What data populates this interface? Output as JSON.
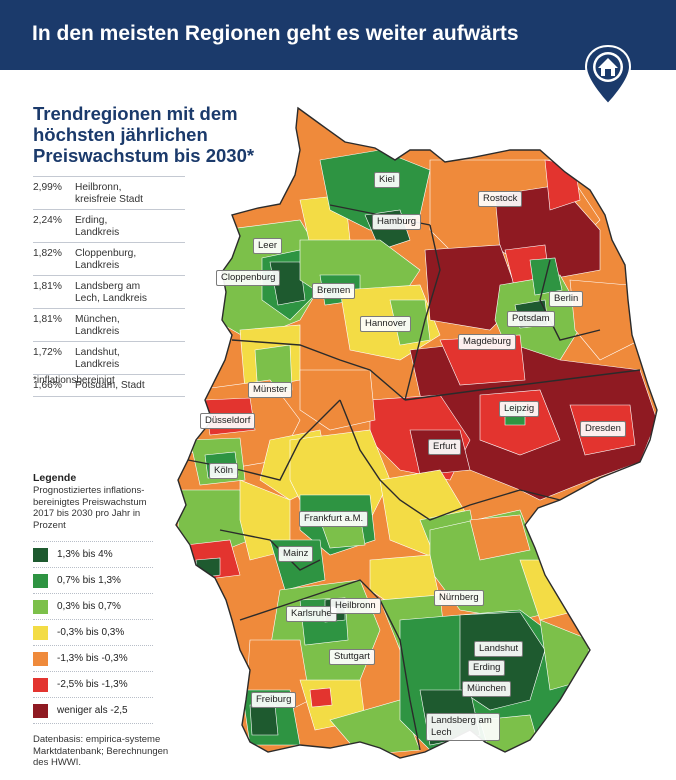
{
  "header": {
    "title": "In den meisten Regionen geht es weiter aufwärts"
  },
  "logo": {
    "icon": "house-pin-icon"
  },
  "panel": {
    "title_lines": [
      "Trendregionen mit dem",
      "höchsten jährlichen",
      "Preiswachstum bis 2030*"
    ]
  },
  "ranking": [
    {
      "pct": "2,99%",
      "name_lines": [
        "Heilbronn,",
        "kreisfreie Stadt"
      ]
    },
    {
      "pct": "2,24%",
      "name_lines": [
        "Erding,",
        "Landkreis"
      ]
    },
    {
      "pct": "1,82%",
      "name_lines": [
        "Cloppenburg,",
        "Landkreis"
      ]
    },
    {
      "pct": "1,81%",
      "name_lines": [
        "Landsberg am",
        "Lech, Landkreis"
      ]
    },
    {
      "pct": "1,81%",
      "name_lines": [
        "München,",
        "Landkreis"
      ]
    },
    {
      "pct": "1,72%",
      "name_lines": [
        "Landshut,",
        "Landkreis"
      ]
    },
    {
      "pct": "1,66%",
      "name_lines": [
        "Potsdam, Stadt"
      ]
    }
  ],
  "footnote": "*inflationsbereinigt",
  "legend": {
    "title": "Legende",
    "subtitle_lines": [
      "Prognostiziertes inflations-",
      "bereinigtes Preiswachstum",
      "2017 bis 2030 pro Jahr in",
      "Prozent"
    ],
    "items": [
      {
        "label": "1,3% bis 4%",
        "color": "#1e5a2f"
      },
      {
        "label": "0,7% bis 1,3%",
        "color": "#2e9442"
      },
      {
        "label": "0,3% bis 0,7%",
        "color": "#7cc04a"
      },
      {
        "label": "-0,3% bis 0,3%",
        "color": "#f3dc45"
      },
      {
        "label": "-1,3% bis -0,3%",
        "color": "#ef8a3b"
      },
      {
        "label": "-2,5% bis -1,3%",
        "color": "#e3342f"
      },
      {
        "label": "weniger als -2,5",
        "color": "#8f1a22"
      }
    ]
  },
  "source_lines": [
    "Datenbasis: empirica-systeme",
    "Marktdatenbank; Berechnungen",
    "des HWWI."
  ],
  "cities": [
    "Kiel",
    "Rostock",
    "Hamburg",
    "Leer",
    "Cloppenburg",
    "Bremen",
    "Berlin",
    "Potsdam",
    "Hannover",
    "Magdeburg",
    "Münster",
    "Düsseldorf",
    "Leipzig",
    "Dresden",
    "Erfurt",
    "Köln",
    "Frankfurt a.M.",
    "Mainz",
    "Nürnberg",
    "Karlsruhe",
    "Heilbronn",
    "Landshut",
    "Erding",
    "Stuttgart",
    "München",
    "Freiburg",
    "Landsberg am Lech"
  ]
}
